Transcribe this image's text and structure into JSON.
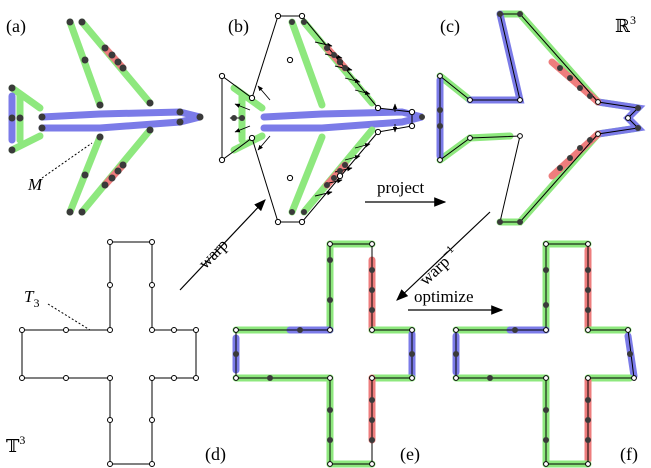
{
  "panels": {
    "a": "(a)",
    "b": "(b)",
    "c": "(c)",
    "d": "(d)",
    "e": "(e)",
    "f": "(f)"
  },
  "space_labels": {
    "r3": "ℝ",
    "r3_exp": "3",
    "t3": "𝕋",
    "t3_exp": "3"
  },
  "annotations": {
    "mesh": "M",
    "template": "T",
    "template_sub": "3"
  },
  "arrows": {
    "warp": "warp",
    "project": "project",
    "warp_inverse": "warp",
    "warp_inverse_exp": "−1",
    "optimize": "optimize"
  },
  "colors": {
    "green": "#8ee87e",
    "blue": "#7b7be8",
    "red": "#ee7d7d",
    "vertex": "#3a3a3a"
  }
}
